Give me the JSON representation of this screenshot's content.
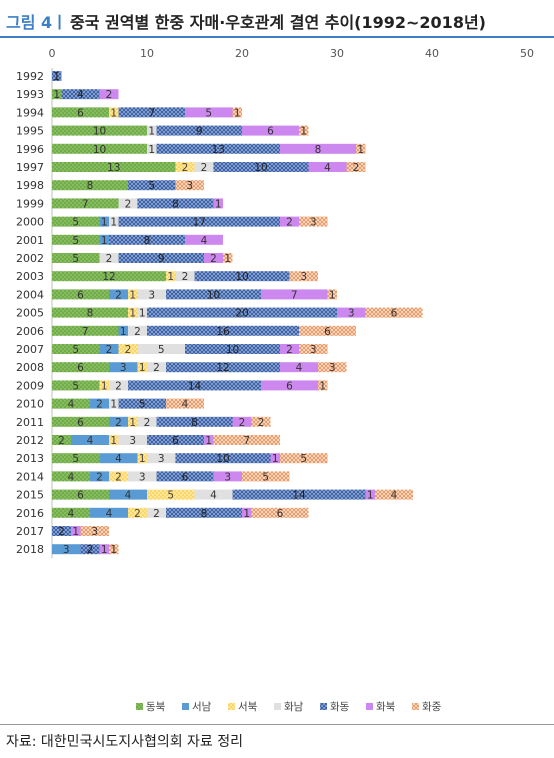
{
  "figure_label": "그림 4ㅣ",
  "title": "중국 권역별 한중 자매·우호관계 결연 추이(1992~2018년)",
  "source": "자료: 대한민국시도지사협의회 자료 정리",
  "chart_data": {
    "type": "bar",
    "orientation": "horizontal",
    "stacked": true,
    "xlim": [
      0,
      50
    ],
    "xticks": [
      0,
      10,
      20,
      30,
      40,
      50
    ],
    "grid": false,
    "legend_position": "bottom",
    "categories": [
      "1992",
      "1993",
      "1994",
      "1995",
      "1996",
      "1997",
      "1998",
      "1999",
      "2000",
      "2001",
      "2002",
      "2003",
      "2004",
      "2005",
      "2006",
      "2007",
      "2008",
      "2009",
      "2010",
      "2011",
      "2012",
      "2013",
      "2014",
      "2015",
      "2016",
      "2017",
      "2018"
    ],
    "series": [
      {
        "name": "동북",
        "color": "#70ad47",
        "pattern": "dots-green",
        "values": [
          0,
          1,
          6,
          10,
          10,
          13,
          8,
          7,
          5,
          5,
          5,
          12,
          6,
          8,
          7,
          5,
          6,
          5,
          4,
          6,
          2,
          5,
          4,
          6,
          4,
          0,
          0
        ]
      },
      {
        "name": "서남",
        "color": "#5b9bd5",
        "pattern": "solid-blue",
        "values": [
          0,
          0,
          0,
          0,
          0,
          0,
          0,
          0,
          1,
          1,
          0,
          0,
          2,
          0,
          1,
          2,
          3,
          0,
          2,
          2,
          4,
          4,
          2,
          4,
          4,
          0,
          3
        ]
      },
      {
        "name": "서북",
        "color": "#ffd966",
        "pattern": "dots-yellow",
        "values": [
          0,
          0,
          1,
          0,
          0,
          2,
          0,
          0,
          0,
          0,
          0,
          1,
          1,
          1,
          0,
          2,
          1,
          1,
          0,
          1,
          1,
          1,
          2,
          5,
          2,
          0,
          0
        ]
      },
      {
        "name": "화남",
        "color": "#d9d9d9",
        "pattern": "solid-gray",
        "values": [
          0,
          0,
          0,
          1,
          1,
          2,
          0,
          2,
          1,
          0,
          2,
          2,
          3,
          1,
          2,
          5,
          2,
          2,
          1,
          2,
          3,
          3,
          3,
          4,
          2,
          0,
          0
        ]
      },
      {
        "name": "화동",
        "color": "#2f5597",
        "pattern": "hatch-navy",
        "values": [
          1,
          4,
          7,
          9,
          13,
          10,
          5,
          8,
          17,
          8,
          9,
          10,
          10,
          20,
          16,
          10,
          12,
          14,
          5,
          8,
          6,
          10,
          6,
          14,
          8,
          2,
          2
        ]
      },
      {
        "name": "화북",
        "color": "#cc88ee",
        "pattern": "solid-violet",
        "values": [
          0,
          2,
          5,
          6,
          8,
          4,
          0,
          1,
          2,
          4,
          2,
          0,
          7,
          3,
          0,
          2,
          4,
          6,
          0,
          2,
          1,
          1,
          3,
          1,
          1,
          1,
          1
        ]
      },
      {
        "name": "화중",
        "color": "#f4b183",
        "pattern": "cross-orange",
        "values": [
          0,
          0,
          1,
          1,
          1,
          2,
          3,
          0,
          3,
          0,
          1,
          3,
          1,
          6,
          6,
          3,
          3,
          1,
          4,
          2,
          7,
          5,
          5,
          4,
          6,
          3,
          1
        ]
      }
    ]
  }
}
